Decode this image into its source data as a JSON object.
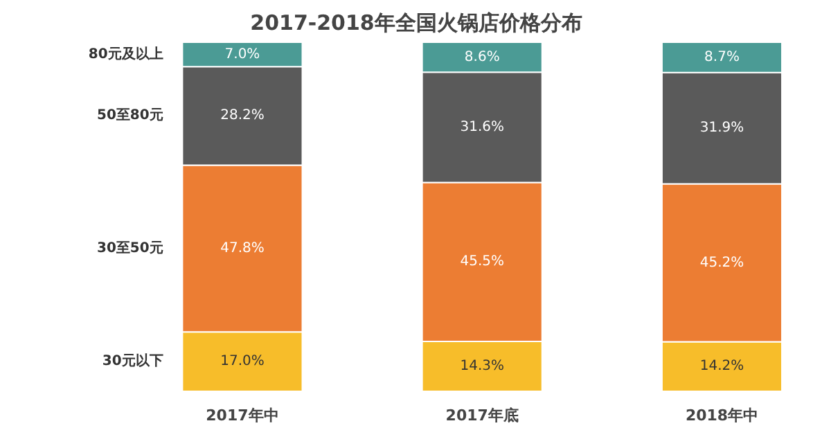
{
  "chart_data": {
    "type": "bar",
    "stacked": true,
    "title": "2017-2018年全国火锅店价格分布",
    "categories": [
      "2017年中",
      "2017年底",
      "2018年中"
    ],
    "tick_labels": "x",
    "grid": false,
    "series": [
      {
        "name": "30元以下",
        "color": "#f7bd2a",
        "values": [
          17.0,
          14.3,
          14.2
        ],
        "value_labels": [
          "17.0%",
          "14.3%",
          "14.2%"
        ]
      },
      {
        "name": "30至50元",
        "color": "#ec7d33",
        "values": [
          47.8,
          45.5,
          45.2
        ],
        "value_labels": [
          "47.8%",
          "45.5%",
          "45.2%"
        ]
      },
      {
        "name": "50至80元",
        "color": "#5a5a5a",
        "values": [
          28.2,
          31.6,
          31.9
        ],
        "value_labels": [
          "28.2%",
          "31.6%",
          "31.9%"
        ]
      },
      {
        "name": "80元及以上",
        "color": "#4b9b95",
        "values": [
          7.0,
          8.6,
          8.7
        ],
        "value_labels": [
          "7.0%",
          "8.6%",
          "8.7%"
        ]
      }
    ]
  }
}
